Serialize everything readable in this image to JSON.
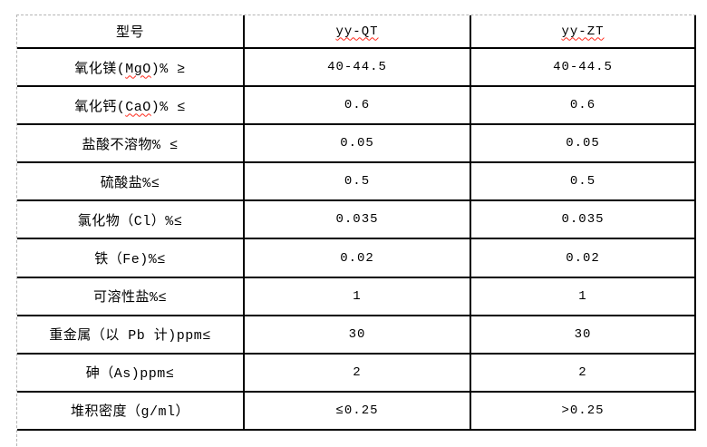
{
  "colors": {
    "grid_line": "#000000",
    "guide_line": "#b5b5b5",
    "spellcheck_underline": "#ff2a1c",
    "background": "#ffffff",
    "text": "#000000"
  },
  "table": {
    "header": {
      "model_label": "型号",
      "col_qt": "yy-QT",
      "col_zt": "yy-ZT"
    },
    "rows": [
      {
        "pre": "氧化镁(",
        "spell": "MgO",
        "post": ")% ≥",
        "qt": "40-44.5",
        "zt": "40-44.5"
      },
      {
        "pre": "氧化钙(",
        "spell": "CaO",
        "post": ")% ≤",
        "qt": "0.6",
        "zt": "0.6"
      },
      {
        "pre": "盐酸不溶物% ≤",
        "spell": "",
        "post": "",
        "qt": "0.05",
        "zt": "0.05"
      },
      {
        "pre": "硫酸盐%≤",
        "spell": "",
        "post": "",
        "qt": "0.5",
        "zt": "0.5"
      },
      {
        "pre": "氯化物（Cl）%≤",
        "spell": "",
        "post": "",
        "qt": "0.035",
        "zt": "0.035"
      },
      {
        "pre": "铁（Fe)%≤",
        "spell": "",
        "post": "",
        "qt": "0.02",
        "zt": "0.02"
      },
      {
        "pre": "可溶性盐%≤",
        "spell": "",
        "post": "",
        "qt": "1",
        "zt": "1"
      },
      {
        "pre": "重金属（以 Pb 计)ppm≤",
        "spell": "",
        "post": "",
        "qt": "30",
        "zt": "30"
      },
      {
        "pre": "砷（As)ppm≤",
        "spell": "",
        "post": "",
        "qt": "2",
        "zt": "2"
      },
      {
        "pre": "堆积密度（g/ml）",
        "spell": "",
        "post": "",
        "qt": "≤0.25",
        "zt": ">0.25"
      }
    ]
  }
}
